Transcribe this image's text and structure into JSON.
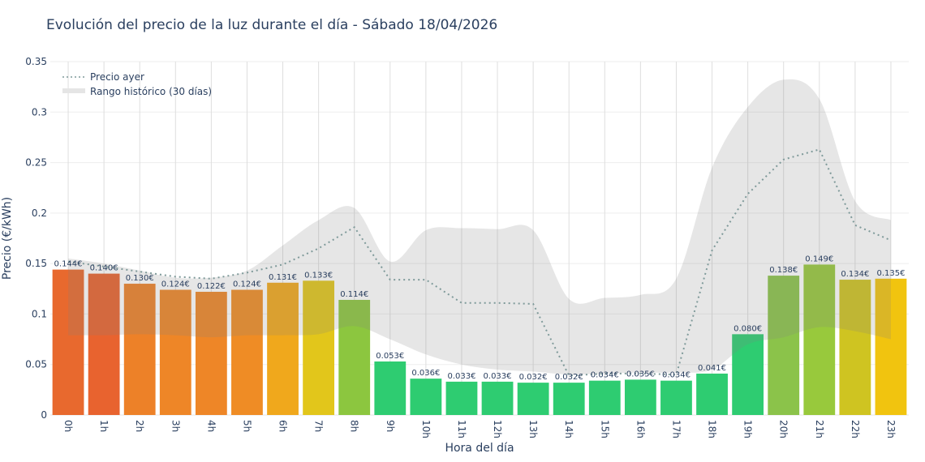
{
  "chart_data": {
    "type": "bar",
    "title": "Evolución del precio de la luz durante el día - Sábado 18/04/2026",
    "xlabel": "Hora del día",
    "ylabel": "Precio (€/kWh)",
    "ylim": [
      0,
      0.35
    ],
    "yticks": [
      "0",
      "0.05",
      "0.1",
      "0.15",
      "0.2",
      "0.25",
      "0.3",
      "0.35"
    ],
    "grid": true,
    "legend_placement": "top-left",
    "categories": [
      "0h",
      "1h",
      "2h",
      "3h",
      "4h",
      "5h",
      "6h",
      "7h",
      "8h",
      "9h",
      "10h",
      "11h",
      "12h",
      "13h",
      "14h",
      "15h",
      "16h",
      "17h",
      "18h",
      "19h",
      "20h",
      "21h",
      "22h",
      "23h"
    ],
    "values": [
      0.144,
      0.14,
      0.13,
      0.124,
      0.122,
      0.124,
      0.131,
      0.133,
      0.114,
      0.053,
      0.036,
      0.033,
      0.033,
      0.032,
      0.032,
      0.034,
      0.035,
      0.034,
      0.041,
      0.08,
      0.138,
      0.149,
      0.134,
      0.135
    ],
    "value_labels": [
      "0.144€",
      "0.140€",
      "0.130€",
      "0.124€",
      "0.122€",
      "0.124€",
      "0.131€",
      "0.133€",
      "0.114€",
      "0.053€",
      "0.036€",
      "0.033€",
      "0.033€",
      "0.032€",
      "0.032€",
      "0.034€",
      "0.035€",
      "0.034€",
      "0.041€",
      "0.080€",
      "0.138€",
      "0.149€",
      "0.134€",
      "0.135€"
    ],
    "bar_colors": [
      "#e8692e",
      "#e8632f",
      "#ed8128",
      "#ee8627",
      "#ee8627",
      "#ef8c25",
      "#f0a81c",
      "#e2c61b",
      "#8cc63f",
      "#2ecc71",
      "#2ecc71",
      "#2ecc71",
      "#2ecc71",
      "#2ecc71",
      "#2ecc71",
      "#2ecc71",
      "#2ecc71",
      "#2ecc71",
      "#2ecc71",
      "#2ecc71",
      "#8bc34a",
      "#98c93c",
      "#cfc421",
      "#f1c40f"
    ],
    "series": [
      {
        "name": "Precio ayer",
        "style": "dotted-line",
        "color": "#7f9a9a",
        "values": [
          0.152,
          0.147,
          0.142,
          0.137,
          0.135,
          0.141,
          0.149,
          0.165,
          0.186,
          0.134,
          0.134,
          0.111,
          0.111,
          0.11,
          0.039,
          0.041,
          0.041,
          0.04,
          0.163,
          0.219,
          0.253,
          0.263,
          0.188,
          0.173
        ]
      },
      {
        "name": "Rango histórico (30 días)",
        "style": "band",
        "color": "#e5e5e5",
        "high": [
          0.155,
          0.15,
          0.143,
          0.136,
          0.136,
          0.143,
          0.168,
          0.193,
          0.205,
          0.152,
          0.183,
          0.185,
          0.184,
          0.183,
          0.115,
          0.116,
          0.119,
          0.135,
          0.245,
          0.305,
          0.332,
          0.313,
          0.212,
          0.193
        ],
        "low": [
          0.079,
          0.079,
          0.08,
          0.079,
          0.077,
          0.079,
          0.079,
          0.08,
          0.088,
          0.075,
          0.06,
          0.05,
          0.045,
          0.043,
          0.04,
          0.041,
          0.042,
          0.042,
          0.045,
          0.07,
          0.077,
          0.087,
          0.083,
          0.075
        ]
      }
    ]
  }
}
